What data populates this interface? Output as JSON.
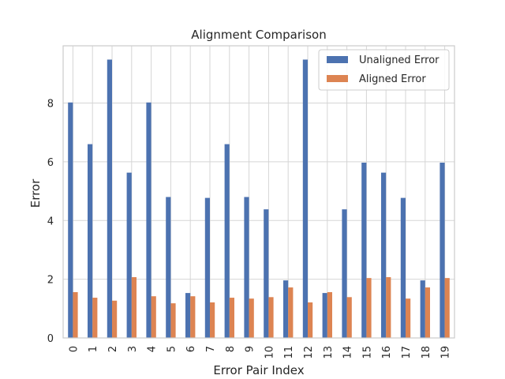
{
  "chart_data": {
    "type": "bar",
    "title": "Alignment Comparison",
    "xlabel": "Error Pair Index",
    "ylabel": "Error",
    "categories": [
      "0",
      "1",
      "2",
      "3",
      "4",
      "5",
      "6",
      "7",
      "8",
      "9",
      "10",
      "11",
      "12",
      "13",
      "14",
      "15",
      "16",
      "17",
      "18",
      "19"
    ],
    "series": [
      {
        "name": "Unaligned Error",
        "color": "#4c72b0",
        "values": [
          8.02,
          6.6,
          9.48,
          5.63,
          8.02,
          4.8,
          1.53,
          4.77,
          6.6,
          4.8,
          4.38,
          1.96,
          9.48,
          1.53,
          4.38,
          5.97,
          5.63,
          4.77,
          1.96,
          5.97
        ]
      },
      {
        "name": "Aligned Error",
        "color": "#dd8452",
        "values": [
          1.56,
          1.37,
          1.27,
          2.07,
          1.42,
          1.18,
          1.42,
          1.21,
          1.37,
          1.34,
          1.39,
          1.72,
          1.21,
          1.56,
          1.39,
          2.04,
          2.07,
          1.34,
          1.72,
          2.04
        ]
      }
    ],
    "ylim": [
      0,
      9.95
    ],
    "yticks": [
      0,
      2,
      4,
      6,
      8
    ],
    "grid": true,
    "legend_position": "top-right"
  }
}
